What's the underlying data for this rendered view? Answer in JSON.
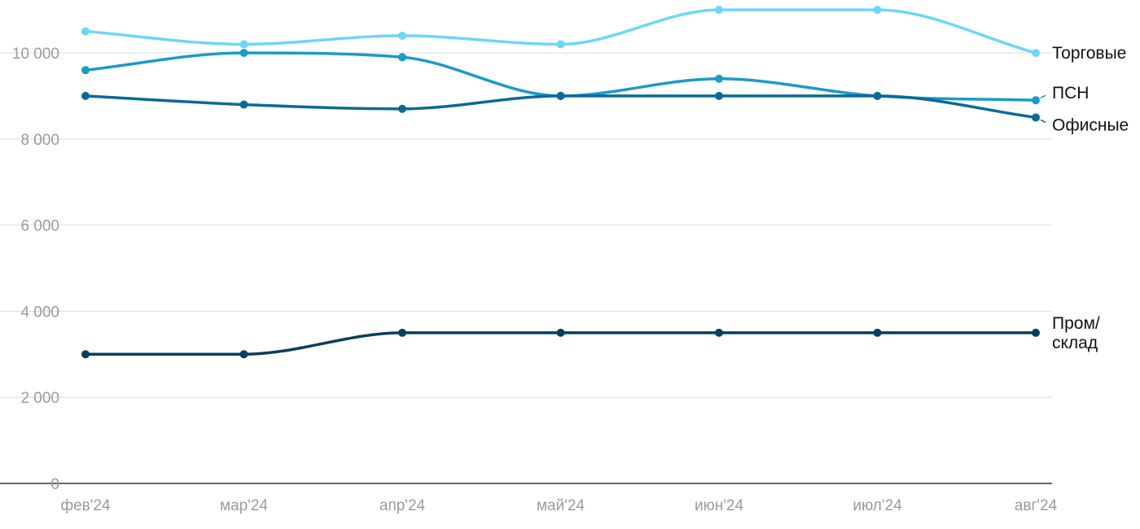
{
  "chart_data": {
    "type": "line",
    "title": "",
    "xlabel": "",
    "ylabel": "",
    "categories": [
      "фев'24",
      "мар'24",
      "апр'24",
      "май'24",
      "июн'24",
      "июл'24",
      "авг'24"
    ],
    "y_ticks": [
      "0",
      "2 000",
      "4 000",
      "6 000",
      "8 000",
      "10 000"
    ],
    "ylim": [
      0,
      10000
    ],
    "grid": true,
    "legend": "inline labels at line ends",
    "series": [
      {
        "name": "Торговые",
        "color": "#6dd6fb",
        "values": [
          10500,
          10200,
          10400,
          10200,
          11000,
          11000,
          10000
        ]
      },
      {
        "name": "ПСН",
        "color": "#1a9bc8",
        "values": [
          9600,
          10000,
          9900,
          9000,
          9400,
          9000,
          8900
        ]
      },
      {
        "name": "Офисные",
        "color": "#0b6a95",
        "values": [
          9000,
          8800,
          8700,
          9000,
          9000,
          9000,
          8500
        ]
      },
      {
        "name": "Пром/ склад",
        "color": "#073f5f",
        "values": [
          3000,
          3000,
          3500,
          3500,
          3500,
          3500,
          3500
        ]
      }
    ]
  }
}
